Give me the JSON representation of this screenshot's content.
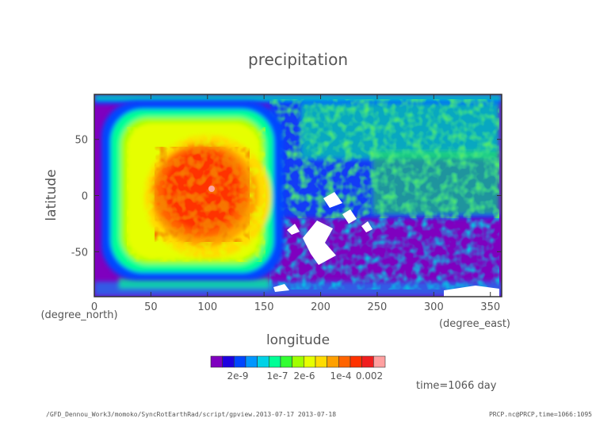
{
  "figure": {
    "title": "precipitation",
    "time_label": "time=1066 day",
    "footer_left": "/GFD_Dennou_Work3/momoko/SyncRotEarthRad/script/gpview.2013-07-17  2013-07-18",
    "footer_right": "PRCP.nc@PRCP,time=1066:1095"
  },
  "chart_data": {
    "type": "heatmap",
    "title": "precipitation",
    "xlabel": "longitude",
    "xunit": "(degree_east)",
    "ylabel": "latitude",
    "yunit": "(degree_north)",
    "xlim": [
      0,
      360
    ],
    "ylim": [
      -90,
      90
    ],
    "xticks": [
      0,
      50,
      100,
      150,
      200,
      250,
      300,
      350
    ],
    "yticks": [
      -50,
      0,
      50
    ],
    "colorbar": {
      "colors": [
        "#7f00bf",
        "#1e00e0",
        "#0046ff",
        "#0096ff",
        "#00d2e6",
        "#00ff96",
        "#32ff32",
        "#a0ff00",
        "#e6ff00",
        "#ffdc00",
        "#ffa000",
        "#ff6400",
        "#ff3200",
        "#f01e1e",
        "#ffa0a0"
      ],
      "tick_labels": [
        "2e-9",
        "1e-7",
        "2e-6",
        "1e-4",
        "0.002"
      ]
    }
  }
}
